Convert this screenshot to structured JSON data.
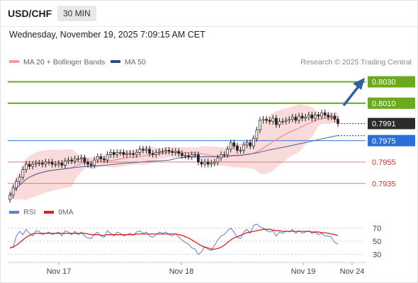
{
  "header": {
    "symbol": "USD/CHF",
    "timeframe": "30 MIN",
    "datetime": "Wednesday, November 19, 2025 7:09:15 AM CET"
  },
  "colors": {
    "resistance_line": "#6aab1e",
    "support_line": "#e07a7a",
    "pivot_line": "#2b6fdc",
    "last_price_badge": "#2b2b2b",
    "bollinger_band": "#f8cfcf",
    "ma20": "#f08a8a",
    "ma50": "#4a5f9a",
    "arrow": "#2f5fa5",
    "rsi": "#5b7fd6",
    "rsi_ma": "#e01e1e",
    "candle_up": "#ffffff",
    "candle_down": "#222222"
  },
  "chart_data": [
    {
      "type": "line",
      "title": "",
      "legend": [
        {
          "name": "MA 20 + Bollinger Bands",
          "color": "#f08a8a",
          "icon": "pink-bar-icon"
        },
        {
          "name": "MA 50",
          "color": "#2a4f8f",
          "icon": "navy-bar-icon"
        }
      ],
      "legend_position": "top-left",
      "credit": "Research © 2025 Trading Central",
      "ylim": [
        0.7918,
        0.8041
      ],
      "x_tick_labels": [
        "Nov 17",
        "Nov 18",
        "Nov 19",
        "Nov 24"
      ],
      "price_levels": [
        {
          "value": 0.803,
          "label": "0.8030",
          "kind": "resistance"
        },
        {
          "value": 0.801,
          "label": "0.8010",
          "kind": "resistance"
        },
        {
          "value": 0.7991,
          "label": "0.7991",
          "kind": "last"
        },
        {
          "value": 0.7975,
          "label": "0.7975",
          "kind": "pivot"
        },
        {
          "value": 0.7955,
          "label": "0.7955",
          "kind": "support"
        },
        {
          "value": 0.7935,
          "label": "0.7935",
          "kind": "support"
        }
      ],
      "candles_close": [
        0.7924,
        0.7931,
        0.7937,
        0.7941,
        0.7948,
        0.7953,
        0.7951,
        0.7953,
        0.7954,
        0.7954,
        0.7953,
        0.7955,
        0.7955,
        0.7953,
        0.7953,
        0.7954,
        0.7952,
        0.7956,
        0.7957,
        0.7956,
        0.7958,
        0.7958,
        0.7959,
        0.7955,
        0.7953,
        0.7952,
        0.7957,
        0.796,
        0.7958,
        0.7957,
        0.7962,
        0.7964,
        0.7962,
        0.7964,
        0.7964,
        0.7962,
        0.7963,
        0.7963,
        0.7962,
        0.7964,
        0.7967,
        0.7966,
        0.7967,
        0.7963,
        0.7962,
        0.7964,
        0.7965,
        0.7965,
        0.7966,
        0.7965,
        0.7964,
        0.7965,
        0.7963,
        0.7961,
        0.7961,
        0.796,
        0.7962,
        0.7962,
        0.7955,
        0.7953,
        0.7955,
        0.7953,
        0.7954,
        0.7955,
        0.7959,
        0.7962,
        0.7962,
        0.7967,
        0.7973,
        0.797,
        0.7966,
        0.7966,
        0.7971,
        0.7973,
        0.797,
        0.7977,
        0.7985,
        0.7994,
        0.7995,
        0.7994,
        0.7993,
        0.7996,
        0.799,
        0.7993,
        0.7993,
        0.7994,
        0.7995,
        0.7997,
        0.7994,
        0.7998,
        0.7996,
        0.7997,
        0.7999,
        0.7996,
        0.7999,
        0.7998,
        0.8001,
        0.7999,
        0.7997,
        0.7998,
        0.7995,
        0.7991
      ],
      "candles_open": [
        0.792,
        0.7924,
        0.7931,
        0.7937,
        0.7941,
        0.7948,
        0.7953,
        0.7951,
        0.7953,
        0.7954,
        0.7954,
        0.7953,
        0.7955,
        0.7955,
        0.7953,
        0.7953,
        0.7954,
        0.7952,
        0.7956,
        0.7957,
        0.7956,
        0.7958,
        0.7958,
        0.7959,
        0.7955,
        0.7953,
        0.7952,
        0.7957,
        0.796,
        0.7958,
        0.7957,
        0.7962,
        0.7964,
        0.7962,
        0.7964,
        0.7964,
        0.7962,
        0.7963,
        0.7963,
        0.7962,
        0.7964,
        0.7967,
        0.7966,
        0.7967,
        0.7963,
        0.7962,
        0.7964,
        0.7965,
        0.7965,
        0.7966,
        0.7965,
        0.7964,
        0.7965,
        0.7963,
        0.7961,
        0.7961,
        0.796,
        0.7962,
        0.7962,
        0.7955,
        0.7953,
        0.7955,
        0.7953,
        0.7954,
        0.7955,
        0.7959,
        0.7962,
        0.7962,
        0.7967,
        0.7973,
        0.797,
        0.7966,
        0.7966,
        0.7971,
        0.7973,
        0.797,
        0.7977,
        0.7985,
        0.7994,
        0.7995,
        0.7994,
        0.7993,
        0.7996,
        0.799,
        0.7993,
        0.7993,
        0.7994,
        0.7995,
        0.7997,
        0.7994,
        0.7998,
        0.7996,
        0.7997,
        0.7999,
        0.7996,
        0.7999,
        0.7998,
        0.8001,
        0.7999,
        0.7997,
        0.7998,
        0.7995
      ]
    },
    {
      "type": "line",
      "title": "",
      "legend": [
        {
          "name": "RSI",
          "color": "#5b7fd6",
          "icon": "blue-bar-icon"
        },
        {
          "name": "9MA",
          "color": "#e01e1e",
          "icon": "red-bar-icon"
        }
      ],
      "ylim": [
        20,
        80
      ],
      "y_ticks": [
        70,
        50,
        30
      ],
      "series": [
        {
          "name": "RSI",
          "values": [
            40,
            42,
            58,
            65,
            60,
            68,
            62,
            58,
            66,
            65,
            60,
            62,
            64,
            60,
            62,
            64,
            58,
            66,
            64,
            60,
            65,
            60,
            64,
            58,
            55,
            54,
            60,
            64,
            58,
            56,
            66,
            62,
            58,
            64,
            62,
            58,
            60,
            62,
            59,
            64,
            66,
            62,
            64,
            58,
            56,
            60,
            64,
            62,
            64,
            60,
            58,
            62,
            56,
            52,
            48,
            46,
            40,
            38,
            30,
            34,
            42,
            38,
            36,
            44,
            52,
            58,
            60,
            66,
            70,
            64,
            56,
            54,
            64,
            68,
            62,
            74,
            76,
            72,
            70,
            66,
            64,
            66,
            58,
            64,
            62,
            66,
            64,
            68,
            62,
            66,
            62,
            64,
            66,
            62,
            64,
            60,
            62,
            58,
            58,
            56,
            48,
            46
          ]
        },
        {
          "name": "9MA",
          "values": [
            40,
            41,
            44,
            48,
            52,
            56,
            59,
            61,
            62,
            62,
            62,
            62,
            62,
            62,
            62,
            62,
            62,
            62,
            62,
            62,
            62,
            62,
            62,
            62,
            61,
            60,
            60,
            60,
            59,
            59,
            60,
            60,
            60,
            60,
            60,
            60,
            60,
            60,
            60,
            61,
            61,
            61,
            61,
            61,
            61,
            61,
            61,
            61,
            61,
            61,
            61,
            61,
            60,
            59,
            57,
            55,
            52,
            49,
            46,
            43,
            41,
            40,
            38,
            38,
            39,
            41,
            44,
            48,
            52,
            55,
            57,
            59,
            61,
            63,
            64,
            65,
            66,
            67,
            68,
            68,
            68,
            67,
            66,
            66,
            65,
            65,
            65,
            65,
            65,
            65,
            65,
            65,
            65,
            64,
            64,
            64,
            63,
            63,
            62,
            61,
            60,
            59
          ]
        }
      ]
    }
  ]
}
